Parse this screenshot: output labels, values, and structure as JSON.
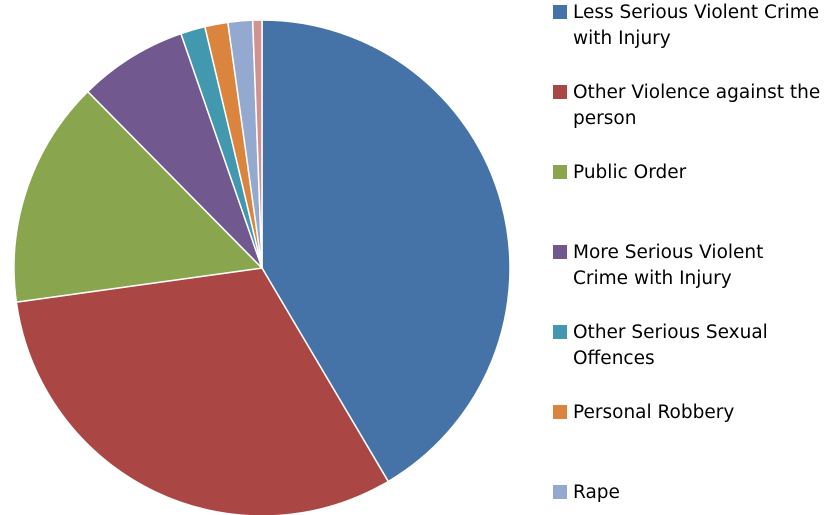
{
  "chart_data": {
    "type": "pie",
    "categories": [
      "Less Serious Violent Crime with Injury",
      "Other Violence against the person",
      "Public Order",
      "More Serious Violent Crime with Injury",
      "Other Serious Sexual Offences",
      "Personal Robbery",
      "Rape",
      null
    ],
    "values": [
      41.5,
      31.3,
      14.8,
      7.1,
      1.6,
      1.5,
      1.6,
      0.6
    ],
    "colors": [
      "#4572a7",
      "#aa4643",
      "#89a54e",
      "#71588f",
      "#4198af",
      "#db843d",
      "#93a9cf",
      "#d19392"
    ]
  }
}
